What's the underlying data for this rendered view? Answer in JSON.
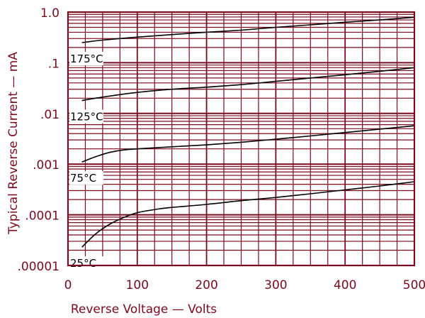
{
  "chart_data": {
    "type": "line",
    "xlabel": "Reverse Voltage — Volts",
    "ylabel": "Typical Reverse Current — mA",
    "xlim": [
      0,
      500
    ],
    "ylim": [
      1e-05,
      1.0
    ],
    "yscale": "log",
    "x_ticks": [
      0,
      100,
      200,
      300,
      400,
      500
    ],
    "x_tick_labels": [
      "0",
      "100",
      "200",
      "300",
      "400",
      "500"
    ],
    "y_ticks": [
      1.0,
      0.1,
      0.01,
      0.001,
      0.0001,
      1e-05
    ],
    "y_tick_labels": [
      "1.0",
      ".1",
      ".01",
      ".001",
      ".0001",
      ".00001"
    ],
    "grid": true,
    "colors": {
      "grid": "#7a0a1e",
      "curve": "#000000",
      "text": "#7a0a1e"
    },
    "series": [
      {
        "name": "175°C",
        "x": [
          20,
          50,
          100,
          150,
          200,
          250,
          300,
          350,
          400,
          450,
          500
        ],
        "y": [
          0.25,
          0.28,
          0.32,
          0.36,
          0.4,
          0.44,
          0.5,
          0.56,
          0.63,
          0.7,
          0.79
        ]
      },
      {
        "name": "125°C",
        "x": [
          20,
          50,
          100,
          150,
          200,
          250,
          300,
          350,
          400,
          450,
          500
        ],
        "y": [
          0.018,
          0.021,
          0.026,
          0.03,
          0.033,
          0.037,
          0.043,
          0.05,
          0.058,
          0.068,
          0.08
        ]
      },
      {
        "name": "75°C",
        "x": [
          20,
          40,
          60,
          80,
          100,
          150,
          200,
          250,
          300,
          350,
          400,
          450,
          500
        ],
        "y": [
          0.0011,
          0.0014,
          0.0017,
          0.0019,
          0.002,
          0.0022,
          0.0024,
          0.0027,
          0.0031,
          0.0036,
          0.0042,
          0.0049,
          0.0057
        ]
      },
      {
        "name": "25°C",
        "x": [
          20,
          40,
          60,
          80,
          100,
          130,
          150,
          200,
          250,
          300,
          350,
          400,
          450,
          500
        ],
        "y": [
          2.3e-05,
          4.2e-05,
          6.5e-05,
          8.8e-05,
          0.00011,
          0.00013,
          0.00014,
          0.00016,
          0.00019,
          0.00022,
          0.00026,
          0.00031,
          0.00037,
          0.00045
        ]
      }
    ]
  }
}
